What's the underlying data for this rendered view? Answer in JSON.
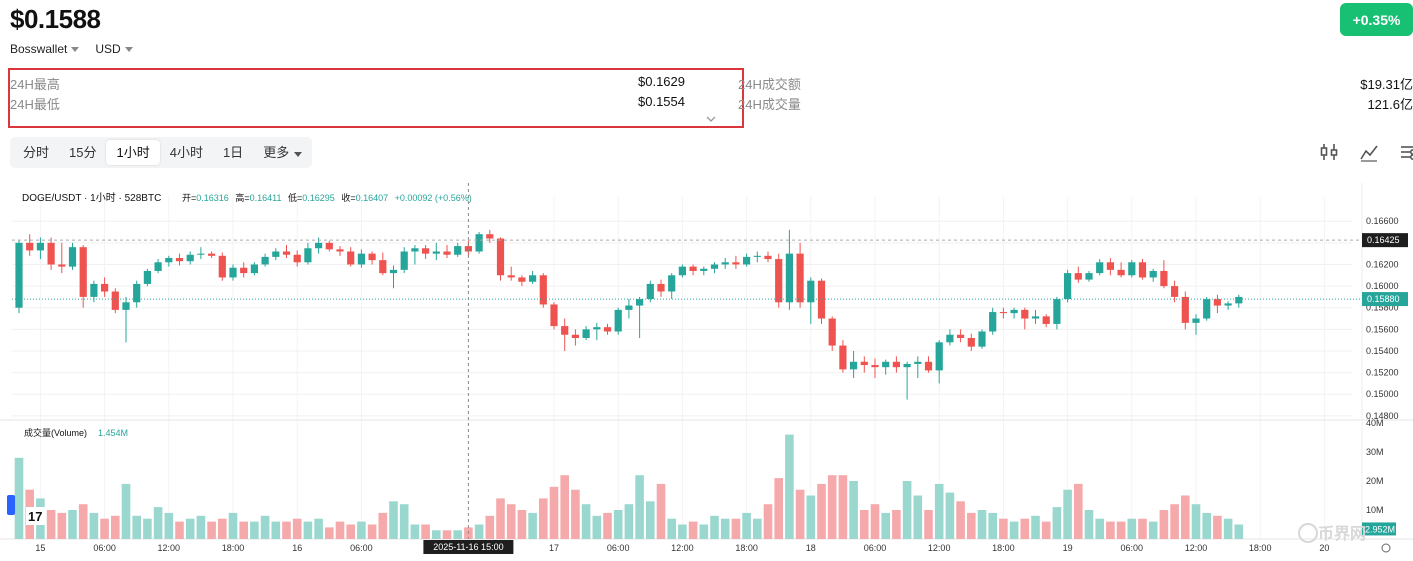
{
  "header": {
    "price": "$0.1588",
    "wallet": "Bosswallet",
    "currency": "USD",
    "change": "+0.35%"
  },
  "stats": {
    "high_label": "24H最高",
    "high_value": "$0.1629",
    "low_label": "24H最低",
    "low_value": "$0.1554",
    "turnover_label": "24H成交额",
    "turnover_value": "$19.31亿",
    "volume_label": "24H成交量",
    "volume_value": "121.6亿"
  },
  "tabs": [
    "分时",
    "15分",
    "1小时",
    "4小时",
    "1日",
    "更多"
  ],
  "active_tab": "1小时",
  "toolbar_icons": [
    "candlestick-icon",
    "line-chart-icon",
    "settings-sliders-icon"
  ],
  "legend": {
    "pair": "DOGE/USDT · 1小时 · 528BTC",
    "open_label": "开=",
    "open": "0.16316",
    "high_label": "高=",
    "high": "0.16411",
    "low_label": "低=",
    "low": "0.16295",
    "close_label": "收=",
    "close": "0.16407",
    "change": "+0.00092 (+0.56%)"
  },
  "volume_legend": {
    "label": "成交量(Volume)",
    "value": "1.454M"
  },
  "crosshair": {
    "time_label": "2025-11-16  15:00",
    "price_label": "0.16425"
  },
  "last_price_label": "0.15880",
  "last_volume_label": "2.952M",
  "watermark": "币界网",
  "colors": {
    "up": "#26a69a",
    "down": "#ef5350",
    "badge": "#17c073",
    "vol_up": "#9ad8cf",
    "vol_down": "#f6a9ab"
  },
  "chart_data": {
    "type": "candlestick",
    "price_axis": {
      "ticks": [
        "0.16600",
        "0.16400",
        "0.16200",
        "0.16000",
        "0.15800",
        "0.15600",
        "0.15400",
        "0.15200",
        "0.15000",
        "0.14800"
      ],
      "range": [
        0.1478,
        0.1675
      ]
    },
    "volume_axis": {
      "ticks": [
        "40M",
        "30M",
        "20M",
        "10M"
      ],
      "range": [
        0,
        40
      ]
    },
    "time_ticks": [
      {
        "label": "15",
        "index": 2
      },
      {
        "label": "06:00",
        "index": 8
      },
      {
        "label": "12:00",
        "index": 14
      },
      {
        "label": "18:00",
        "index": 20
      },
      {
        "label": "16",
        "index": 26
      },
      {
        "label": "06:00",
        "index": 32
      },
      {
        "label": "17",
        "index": 50
      },
      {
        "label": "06:00",
        "index": 56
      },
      {
        "label": "12:00",
        "index": 62
      },
      {
        "label": "18:00",
        "index": 68
      },
      {
        "label": "18",
        "index": 74
      },
      {
        "label": "06:00",
        "index": 80
      },
      {
        "label": "12:00",
        "index": 86
      },
      {
        "label": "18:00",
        "index": 92
      },
      {
        "label": "19",
        "index": 98
      },
      {
        "label": "06:00",
        "index": 104
      },
      {
        "label": "12:00",
        "index": 110
      },
      {
        "label": "18:00",
        "index": 116
      },
      {
        "label": "20",
        "index": 122
      }
    ],
    "crosshair_index": 42,
    "candles": [
      [
        0.158,
        0.1642,
        0.1575,
        0.164,
        28
      ],
      [
        0.164,
        0.1648,
        0.1628,
        0.1633,
        17
      ],
      [
        0.1633,
        0.1645,
        0.1625,
        0.164,
        14
      ],
      [
        0.164,
        0.1645,
        0.1615,
        0.162,
        10
      ],
      [
        0.162,
        0.164,
        0.1612,
        0.1618,
        9
      ],
      [
        0.1618,
        0.164,
        0.1615,
        0.1636,
        10
      ],
      [
        0.1636,
        0.1638,
        0.158,
        0.159,
        12
      ],
      [
        0.159,
        0.1605,
        0.1585,
        0.1602,
        9
      ],
      [
        0.1602,
        0.1608,
        0.159,
        0.1595,
        7
      ],
      [
        0.1595,
        0.1598,
        0.1575,
        0.1578,
        8
      ],
      [
        0.1578,
        0.159,
        0.1548,
        0.1585,
        19
      ],
      [
        0.1585,
        0.1605,
        0.158,
        0.1602,
        8
      ],
      [
        0.1602,
        0.1616,
        0.16,
        0.1614,
        7
      ],
      [
        0.1614,
        0.1625,
        0.1612,
        0.1622,
        11
      ],
      [
        0.1622,
        0.1628,
        0.1618,
        0.1626,
        9
      ],
      [
        0.1626,
        0.163,
        0.1619,
        0.1623,
        6
      ],
      [
        0.1623,
        0.1632,
        0.162,
        0.1629,
        7
      ],
      [
        0.1629,
        0.1636,
        0.1625,
        0.163,
        8
      ],
      [
        0.163,
        0.1632,
        0.1626,
        0.1628,
        6
      ],
      [
        0.1628,
        0.1631,
        0.1605,
        0.1608,
        7
      ],
      [
        0.1608,
        0.162,
        0.1605,
        0.1617,
        9
      ],
      [
        0.1617,
        0.1622,
        0.1608,
        0.1612,
        6
      ],
      [
        0.1612,
        0.1622,
        0.161,
        0.162,
        6
      ],
      [
        0.162,
        0.163,
        0.1618,
        0.1627,
        8
      ],
      [
        0.1627,
        0.1635,
        0.1624,
        0.1632,
        6
      ],
      [
        0.1632,
        0.1638,
        0.1626,
        0.1629,
        6
      ],
      [
        0.1629,
        0.1633,
        0.1618,
        0.1622,
        7
      ],
      [
        0.1622,
        0.164,
        0.162,
        0.1635,
        6
      ],
      [
        0.1635,
        0.1645,
        0.163,
        0.164,
        7
      ],
      [
        0.164,
        0.1642,
        0.1632,
        0.1634,
        4
      ],
      [
        0.1634,
        0.1637,
        0.1628,
        0.1632,
        6
      ],
      [
        0.1632,
        0.1636,
        0.1618,
        0.162,
        5
      ],
      [
        0.162,
        0.1634,
        0.1617,
        0.163,
        6
      ],
      [
        0.163,
        0.1632,
        0.162,
        0.1624,
        5
      ],
      [
        0.1624,
        0.1631,
        0.161,
        0.1612,
        9
      ],
      [
        0.1612,
        0.1619,
        0.1598,
        0.1615,
        13
      ],
      [
        0.1615,
        0.1636,
        0.1612,
        0.1632,
        12
      ],
      [
        0.1632,
        0.1638,
        0.162,
        0.1635,
        5
      ],
      [
        0.1635,
        0.1638,
        0.1625,
        0.163,
        5
      ],
      [
        0.163,
        0.164,
        0.1624,
        0.1632,
        3
      ],
      [
        0.1632,
        0.1638,
        0.1626,
        0.1629,
        3
      ],
      [
        0.1629,
        0.164,
        0.1627,
        0.1637,
        3
      ],
      [
        0.1637,
        0.1642,
        0.1628,
        0.1632,
        4
      ],
      [
        0.1632,
        0.165,
        0.163,
        0.1648,
        5
      ],
      [
        0.1648,
        0.1652,
        0.164,
        0.1644,
        8
      ],
      [
        0.1644,
        0.1645,
        0.1605,
        0.161,
        14
      ],
      [
        0.161,
        0.1618,
        0.1605,
        0.1608,
        12
      ],
      [
        0.1608,
        0.161,
        0.16,
        0.1604,
        10
      ],
      [
        0.1604,
        0.1614,
        0.1602,
        0.161,
        9
      ],
      [
        0.161,
        0.1612,
        0.158,
        0.1583,
        14
      ],
      [
        0.1583,
        0.1585,
        0.156,
        0.1563,
        18
      ],
      [
        0.1563,
        0.157,
        0.154,
        0.1555,
        22
      ],
      [
        0.1555,
        0.156,
        0.1545,
        0.1552,
        17
      ],
      [
        0.1552,
        0.1563,
        0.155,
        0.156,
        12
      ],
      [
        0.156,
        0.1566,
        0.155,
        0.1562,
        8
      ],
      [
        0.1562,
        0.1565,
        0.1555,
        0.1558,
        9
      ],
      [
        0.1558,
        0.158,
        0.1555,
        0.1578,
        10
      ],
      [
        0.1578,
        0.1588,
        0.157,
        0.1582,
        12
      ],
      [
        0.1582,
        0.159,
        0.1552,
        0.1588,
        22
      ],
      [
        0.1588,
        0.1605,
        0.1585,
        0.1602,
        13
      ],
      [
        0.1602,
        0.1606,
        0.159,
        0.1595,
        19
      ],
      [
        0.1595,
        0.1612,
        0.1588,
        0.161,
        7
      ],
      [
        0.161,
        0.162,
        0.1608,
        0.1618,
        5
      ],
      [
        0.1618,
        0.162,
        0.161,
        0.1614,
        6
      ],
      [
        0.1614,
        0.1618,
        0.161,
        0.1616,
        5
      ],
      [
        0.1616,
        0.1622,
        0.1612,
        0.162,
        8
      ],
      [
        0.162,
        0.1626,
        0.1616,
        0.1622,
        7
      ],
      [
        0.1622,
        0.1628,
        0.1616,
        0.162,
        7
      ],
      [
        0.162,
        0.163,
        0.1618,
        0.1627,
        9
      ],
      [
        0.1627,
        0.1632,
        0.1622,
        0.1628,
        7
      ],
      [
        0.1628,
        0.1632,
        0.1622,
        0.1625,
        12
      ],
      [
        0.1625,
        0.163,
        0.158,
        0.1585,
        21
      ],
      [
        0.1585,
        0.1652,
        0.1578,
        0.163,
        36
      ],
      [
        0.163,
        0.164,
        0.158,
        0.1585,
        17
      ],
      [
        0.1585,
        0.1608,
        0.1565,
        0.1605,
        15
      ],
      [
        0.1605,
        0.1607,
        0.1565,
        0.157,
        19
      ],
      [
        0.157,
        0.1572,
        0.154,
        0.1545,
        22
      ],
      [
        0.1545,
        0.155,
        0.152,
        0.1523,
        22
      ],
      [
        0.1523,
        0.154,
        0.1515,
        0.153,
        20
      ],
      [
        0.153,
        0.1535,
        0.152,
        0.1527,
        10
      ],
      [
        0.1527,
        0.1533,
        0.1515,
        0.1525,
        12
      ],
      [
        0.1525,
        0.1532,
        0.1518,
        0.153,
        9
      ],
      [
        0.153,
        0.1535,
        0.152,
        0.1525,
        10
      ],
      [
        0.1525,
        0.153,
        0.1495,
        0.1528,
        20
      ],
      [
        0.1528,
        0.1535,
        0.1515,
        0.153,
        15
      ],
      [
        0.153,
        0.1535,
        0.152,
        0.1522,
        10
      ],
      [
        0.1522,
        0.155,
        0.151,
        0.1548,
        19
      ],
      [
        0.1548,
        0.156,
        0.1545,
        0.1555,
        16
      ],
      [
        0.1555,
        0.156,
        0.1548,
        0.1552,
        13
      ],
      [
        0.1552,
        0.1556,
        0.154,
        0.1544,
        9
      ],
      [
        0.1544,
        0.156,
        0.1542,
        0.1558,
        10
      ],
      [
        0.1558,
        0.158,
        0.1555,
        0.1576,
        9
      ],
      [
        0.1576,
        0.158,
        0.157,
        0.1575,
        7
      ],
      [
        0.1575,
        0.158,
        0.157,
        0.1578,
        6
      ],
      [
        0.1578,
        0.158,
        0.156,
        0.157,
        7
      ],
      [
        0.157,
        0.1578,
        0.1565,
        0.1572,
        8
      ],
      [
        0.1572,
        0.1574,
        0.1562,
        0.1565,
        6
      ],
      [
        0.1565,
        0.159,
        0.156,
        0.1588,
        11
      ],
      [
        0.1588,
        0.1615,
        0.1585,
        0.1612,
        17
      ],
      [
        0.1612,
        0.1618,
        0.1603,
        0.1606,
        19
      ],
      [
        0.1606,
        0.1614,
        0.1604,
        0.1612,
        10
      ],
      [
        0.1612,
        0.1625,
        0.161,
        0.1622,
        7
      ],
      [
        0.1622,
        0.1626,
        0.161,
        0.1615,
        6
      ],
      [
        0.1615,
        0.1622,
        0.1608,
        0.161,
        6
      ],
      [
        0.161,
        0.1624,
        0.1608,
        0.1622,
        7
      ],
      [
        0.1622,
        0.1625,
        0.1606,
        0.1608,
        7
      ],
      [
        0.1608,
        0.1616,
        0.1604,
        0.1614,
        6
      ],
      [
        0.1614,
        0.1624,
        0.1598,
        0.16,
        10
      ],
      [
        0.16,
        0.1605,
        0.1585,
        0.159,
        12
      ],
      [
        0.159,
        0.1595,
        0.156,
        0.1566,
        15
      ],
      [
        0.1566,
        0.1574,
        0.1555,
        0.157,
        12
      ],
      [
        0.157,
        0.159,
        0.1568,
        0.1588,
        9
      ],
      [
        0.1588,
        0.1592,
        0.1575,
        0.1582,
        8
      ],
      [
        0.1582,
        0.1586,
        0.1578,
        0.1584,
        7
      ],
      [
        0.1584,
        0.1592,
        0.158,
        0.159,
        5
      ]
    ]
  }
}
